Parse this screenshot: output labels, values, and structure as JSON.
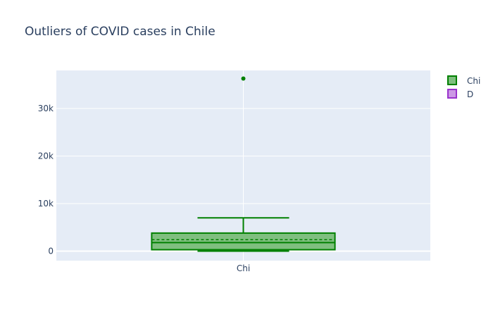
{
  "chart_data": {
    "type": "box",
    "title": "Outliers of COVID cases in Chile",
    "xlabel": "",
    "ylabel": "",
    "categories": [
      "Chi"
    ],
    "ylim": [
      -2000,
      38000
    ],
    "yticks": [
      {
        "value": 0,
        "label": "0"
      },
      {
        "value": 10000,
        "label": "10k"
      },
      {
        "value": 20000,
        "label": "20k"
      },
      {
        "value": 30000,
        "label": "30k"
      }
    ],
    "grid": true,
    "legend_position": "top-right",
    "series": [
      {
        "name": "Chi",
        "category": "Chi",
        "lower_fence": 0,
        "q1": 300,
        "median": 1800,
        "mean": 2400,
        "q3": 3800,
        "upper_fence": 7000,
        "outliers": [
          36300
        ],
        "line_color": "#008000",
        "fill_color": "#7fbf7f"
      }
    ],
    "legend": [
      {
        "label": "Chi",
        "line_color": "#008000",
        "fill_color": "#7fbf7f"
      },
      {
        "label": "D",
        "line_color": "#9932cc",
        "fill_color": "#cc98e5"
      }
    ],
    "colors": {
      "plot_background": "#e5ecf6",
      "grid": "#ffffff",
      "text": "#2a3f5f"
    }
  }
}
